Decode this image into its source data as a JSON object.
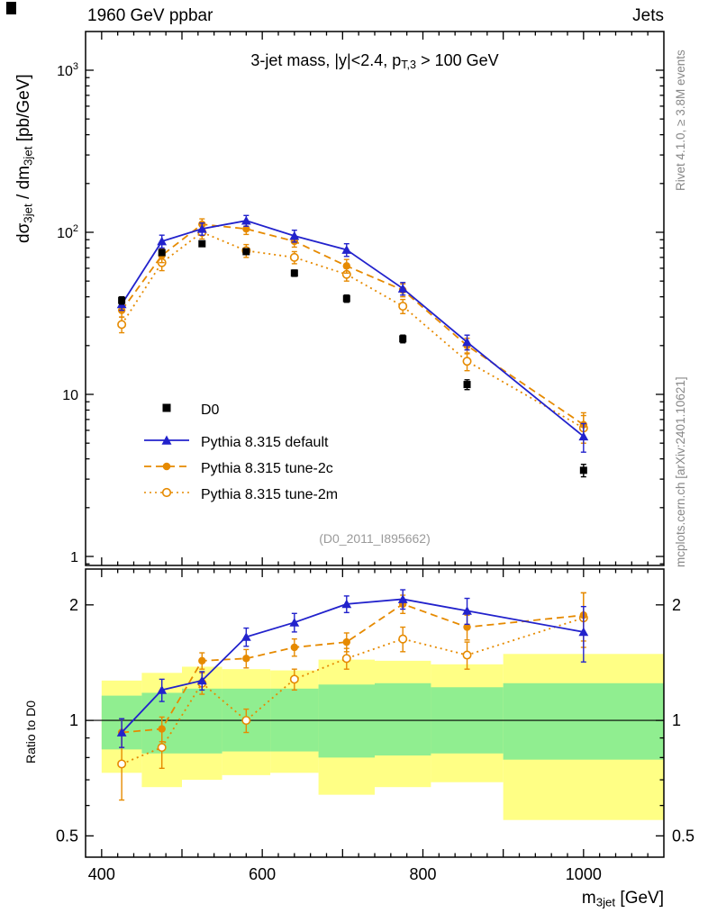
{
  "header": {
    "left": "1960 GeV ppbar",
    "right": "Jets"
  },
  "title": {
    "pre": "3-jet mass, |y|<2.4, p",
    "sub": "T,3",
    "post": " > 100 GeV"
  },
  "axis_titles": {
    "y_top": {
      "pre": "dσ",
      "sub1": "3jet",
      "mid": " / dm",
      "sub2": "3jet",
      "post": " [pb/GeV]"
    },
    "y_ratio": "Ratio to D0",
    "x": {
      "pre": "m",
      "sub": "3jet",
      "post": " [GeV]"
    }
  },
  "captions": {
    "right_top": "Rivet 4.1.0, ≥ 3.8M events",
    "right_bottom": "mcplots.cern.ch [arXiv:2401.10621]",
    "watermark": "(D0_2011_I895662)"
  },
  "legend": [
    {
      "label": "D0",
      "marker": "square",
      "color": "#000000",
      "line": "none"
    },
    {
      "label": "Pythia 8.315 default",
      "marker": "triangle",
      "color": "#2222cc",
      "line": "solid"
    },
    {
      "label": "Pythia 8.315 tune-2c",
      "marker": "circle",
      "color": "#e68a00",
      "line": "dashed"
    },
    {
      "label": "Pythia 8.315 tune-2m",
      "marker": "circle-open",
      "color": "#e68a00",
      "line": "dotted"
    }
  ],
  "chart_data": {
    "type": "line",
    "x_range": [
      380,
      1100
    ],
    "x_labeled_ticks": [
      400,
      600,
      800,
      1000
    ],
    "x_minor_step": 20,
    "bin_edges": [
      400,
      450,
      500,
      550,
      610,
      670,
      740,
      810,
      900,
      1100
    ],
    "x_centers": [
      425,
      475,
      525,
      580,
      640,
      705,
      775,
      855,
      1000
    ],
    "top_panel": {
      "y_scale": "log",
      "y_range": [
        0.88,
        1733
      ],
      "y_major_ticks": [
        1,
        10,
        100,
        1000
      ],
      "series": [
        {
          "name": "D0",
          "marker": "square",
          "color": "#000000",
          "line": "none",
          "values": [
            38,
            75,
            85,
            76,
            56,
            39,
            22,
            11.5,
            3.4
          ],
          "errors": [
            2,
            3,
            3,
            3,
            2.5,
            2,
            1.2,
            0.8,
            0.3
          ]
        },
        {
          "name": "Pythia 8.315 default",
          "marker": "triangle",
          "color": "#2222cc",
          "line": "solid",
          "values": [
            36,
            88,
            105,
            118,
            95,
            78,
            45,
            21,
            5.5
          ],
          "errors": [
            3,
            8,
            9,
            9,
            8,
            7,
            4,
            2.2,
            1.1
          ]
        },
        {
          "name": "Pythia 8.315 tune-2c",
          "marker": "circle",
          "color": "#e68a00",
          "line": "dashed",
          "values": [
            33,
            72,
            112,
            105,
            88,
            62,
            44,
            20,
            6.5
          ],
          "errors": [
            3,
            7,
            9,
            8,
            7,
            6,
            4,
            2.2,
            1.2
          ]
        },
        {
          "name": "Pythia 8.315 tune-2m",
          "marker": "circle-open",
          "color": "#e68a00",
          "line": "dotted",
          "values": [
            27,
            65,
            100,
            77,
            70,
            55,
            35,
            16,
            6.2
          ],
          "errors": [
            3,
            7,
            9,
            7,
            6,
            5,
            3.5,
            2,
            1.2
          ]
        }
      ]
    },
    "ratio_panel": {
      "y_scale": "log",
      "y_range": [
        0.44,
        2.48
      ],
      "y_major_ticks": [
        0.5,
        1,
        2
      ],
      "y_minor_ticks": [
        0.6,
        0.7,
        0.8,
        0.9
      ],
      "unity": 1,
      "bands": [
        {
          "name": "data-uncertainty-outer",
          "color": "#ffff85",
          "limits": [
            [
              0.73,
              1.27
            ],
            [
              0.67,
              1.33
            ],
            [
              0.7,
              1.38
            ],
            [
              0.72,
              1.36
            ],
            [
              0.73,
              1.35
            ],
            [
              0.64,
              1.44
            ],
            [
              0.67,
              1.43
            ],
            [
              0.69,
              1.4
            ],
            [
              0.55,
              1.49
            ]
          ]
        },
        {
          "name": "data-uncertainty-inner",
          "color": "#90ee90",
          "limits": [
            [
              0.84,
              1.16
            ],
            [
              0.82,
              1.18
            ],
            [
              0.82,
              1.21
            ],
            [
              0.83,
              1.21
            ],
            [
              0.83,
              1.21
            ],
            [
              0.8,
              1.24
            ],
            [
              0.81,
              1.25
            ],
            [
              0.82,
              1.22
            ],
            [
              0.79,
              1.25
            ]
          ]
        }
      ],
      "series": [
        {
          "name": "Pythia 8.315 default",
          "marker": "triangle",
          "color": "#2222cc",
          "line": "solid",
          "values": [
            0.93,
            1.2,
            1.27,
            1.65,
            1.8,
            2.01,
            2.07,
            1.93,
            1.7
          ],
          "errors": [
            0.08,
            0.08,
            0.07,
            0.09,
            0.1,
            0.1,
            0.12,
            0.15,
            0.28
          ]
        },
        {
          "name": "Pythia 8.315 tune-2c",
          "marker": "circle",
          "color": "#e68a00",
          "line": "dashed",
          "values": [
            0.93,
            0.95,
            1.43,
            1.45,
            1.55,
            1.6,
            2.01,
            1.75,
            1.88
          ],
          "errors": [
            0.08,
            0.07,
            0.07,
            0.08,
            0.08,
            0.09,
            0.11,
            0.13,
            0.27
          ]
        },
        {
          "name": "Pythia 8.315 tune-2m",
          "marker": "circle-open",
          "color": "#e68a00",
          "line": "dotted",
          "values": [
            0.77,
            0.85,
            1.25,
            1.0,
            1.28,
            1.45,
            1.63,
            1.48,
            1.85
          ],
          "errors": [
            0.15,
            0.1,
            0.08,
            0.07,
            0.08,
            0.09,
            0.12,
            0.12,
            0.3
          ]
        }
      ]
    }
  }
}
